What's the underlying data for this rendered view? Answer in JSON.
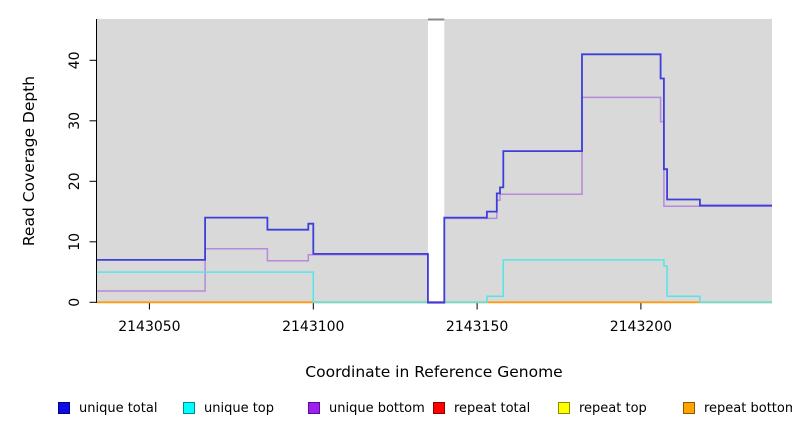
{
  "chart_data": {
    "type": "line",
    "subtype": "step",
    "title": "",
    "xlabel": "Coordinate in Reference Genome",
    "ylabel": "Read Coverage Depth",
    "xlim": [
      2143034,
      2143240
    ],
    "ylim": [
      0,
      46.9
    ],
    "xticks": [
      2143050,
      2143100,
      2143150,
      2143200
    ],
    "yticks": [
      0,
      10,
      20,
      30,
      40
    ],
    "grid": false,
    "legend_position": "bottom",
    "panel_background": "#d9d9d9",
    "gap_region": {
      "x_start": 2143135,
      "x_end": 2143140,
      "fill": "#ffffff",
      "top_edge_color": "#8a8a8a"
    },
    "series": [
      {
        "name": "unique total",
        "line_color": "#3e3eda",
        "swatch_fill": "#0d0de8",
        "swatch_border": "#000080",
        "points": [
          [
            2143034,
            7
          ],
          [
            2143067,
            14
          ],
          [
            2143086,
            12
          ],
          [
            2143098.5,
            13
          ],
          [
            2143100,
            8
          ],
          [
            2143135,
            0
          ],
          [
            2143140,
            14
          ],
          [
            2143153,
            15
          ],
          [
            2143156,
            18
          ],
          [
            2143157,
            19
          ],
          [
            2143158,
            25
          ],
          [
            2143182,
            41
          ],
          [
            2143206,
            37
          ],
          [
            2143207,
            22
          ],
          [
            2143208,
            17
          ],
          [
            2143218,
            16
          ],
          [
            2143240,
            16
          ]
        ]
      },
      {
        "name": "unique top",
        "line_color": "#55e5e8",
        "swatch_fill": "#00ffff",
        "swatch_border": "#008b8b",
        "points": [
          [
            2143034,
            5
          ],
          [
            2143100,
            0
          ],
          [
            2143153,
            1
          ],
          [
            2143158,
            7
          ],
          [
            2143207,
            6
          ],
          [
            2143208,
            1
          ],
          [
            2143218,
            0
          ],
          [
            2143240,
            0
          ]
        ]
      },
      {
        "name": "unique bottom",
        "line_color": "#b68adb",
        "swatch_fill": "#a020f0",
        "swatch_border": "#5a0a96",
        "points": [
          [
            2143034,
            2
          ],
          [
            2143067,
            9
          ],
          [
            2143086,
            7
          ],
          [
            2143098.5,
            8
          ],
          [
            2143135,
            0
          ],
          [
            2143140,
            14
          ],
          [
            2143156,
            17
          ],
          [
            2143157,
            18
          ],
          [
            2143182,
            34
          ],
          [
            2143206,
            30
          ],
          [
            2143207,
            16
          ],
          [
            2143240,
            16
          ]
        ]
      },
      {
        "name": "repeat total",
        "line_color": "#ff0000",
        "swatch_fill": "#ff0000",
        "swatch_border": "#8b0000",
        "points": [
          [
            2143034,
            0
          ],
          [
            2143240,
            0
          ]
        ]
      },
      {
        "name": "repeat top",
        "line_color": "#ffff00",
        "swatch_fill": "#ffff00",
        "swatch_border": "#8b8b00",
        "points": [
          [
            2143034,
            0
          ],
          [
            2143240,
            0
          ]
        ]
      },
      {
        "name": "repeat bottom",
        "line_color": "#ff9b0e",
        "swatch_fill": "#ffa500",
        "swatch_border": "#8b5a00",
        "points": [
          [
            2143034,
            0
          ],
          [
            2143240,
            0
          ]
        ]
      }
    ],
    "zero_line_blend": {
      "color": "#98d49e",
      "segments": [
        [
          2143100,
          2143135
        ],
        [
          2143140,
          2143153
        ],
        [
          2143218,
          2143240
        ]
      ]
    }
  }
}
